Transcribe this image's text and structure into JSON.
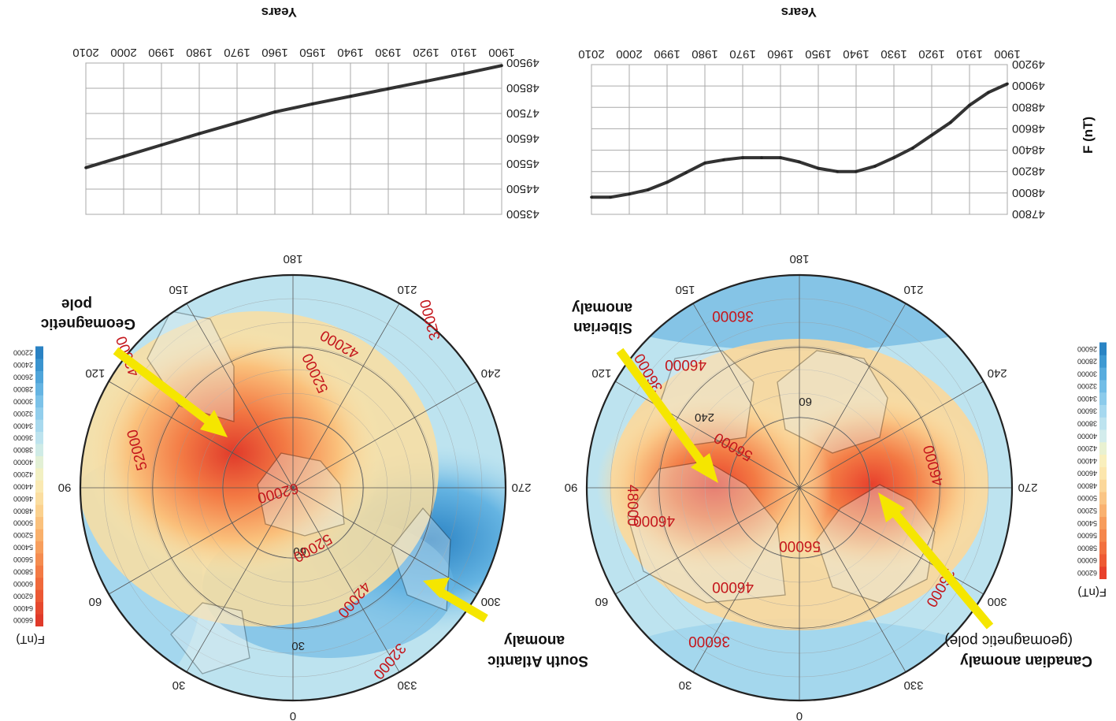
{
  "figure": {
    "orientation": "rotated 180 degrees",
    "panels": [
      {
        "id": "north",
        "colorbar": {
          "title": "F(nT)",
          "labels": [
            "62000",
            "60000",
            "58000",
            "56000",
            "54000",
            "52000",
            "50000",
            "48000",
            "46000",
            "44000",
            "42000",
            "40000",
            "38000",
            "36000",
            "34000",
            "32000",
            "30000",
            "28000",
            "26000"
          ],
          "colors": [
            "#e8402c",
            "#ee5a34",
            "#f2703f",
            "#f5864c",
            "#f79c5c",
            "#f9b170",
            "#fac585",
            "#fbd79a",
            "#fce6ad",
            "#f9efbd",
            "#e9f1d1",
            "#d3ecec",
            "#bde3ef",
            "#a6d8ef",
            "#8ccbeb",
            "#72bde6",
            "#58acde",
            "#3e99d2",
            "#2a84c4"
          ]
        },
        "map": {
          "azimuth_labels": [
            "0",
            "30",
            "60",
            "90",
            "120",
            "150",
            "180",
            "210",
            "240",
            "270",
            "300",
            "330"
          ],
          "lat_labels": [
            "60",
            "240"
          ],
          "contour_labels": [
            "36000",
            "46000",
            "56000",
            "46000",
            "56000",
            "36000",
            "46000",
            "36000",
            "48000",
            "46000",
            "36000"
          ],
          "annotations": [
            {
              "id": "canadian",
              "lines": [
                "Canadian anomaly",
                "(geomagnetic pole)"
              ]
            },
            {
              "id": "siberian",
              "lines": [
                "Siberian",
                "anomaly"
              ]
            }
          ]
        },
        "line_chart": {
          "ylabel": "F (nT)",
          "xlabel": "Years",
          "type": "line",
          "x": [
            1900,
            1905,
            1910,
            1915,
            1920,
            1925,
            1930,
            1935,
            1940,
            1945,
            1950,
            1955,
            1960,
            1965,
            1970,
            1975,
            1980,
            1985,
            1990,
            1995,
            2000,
            2005,
            2010
          ],
          "values": [
            49020,
            48940,
            48820,
            48660,
            48540,
            48420,
            48330,
            48250,
            48200,
            48200,
            48230,
            48290,
            48330,
            48330,
            48330,
            48310,
            48280,
            48190,
            48100,
            48030,
            47990,
            47960,
            47960
          ],
          "yticks": [
            49200,
            49000,
            48800,
            48600,
            48400,
            48200,
            48000,
            47800
          ],
          "xticks": [
            1900,
            1910,
            1920,
            1930,
            1940,
            1950,
            1960,
            1970,
            1980,
            1990,
            2000,
            2010
          ]
        }
      },
      {
        "id": "south",
        "colorbar": {
          "title": "F(nT)",
          "labels": [
            "66000",
            "64000",
            "62000",
            "60000",
            "58000",
            "56000",
            "54000",
            "52000",
            "50000",
            "48000",
            "46000",
            "44000",
            "42000",
            "40000",
            "38000",
            "36000",
            "34000",
            "32000",
            "30000",
            "28000",
            "26000",
            "24000",
            "22000"
          ],
          "colors": [
            "#e03a2a",
            "#e6482e",
            "#ec5834",
            "#f0693b",
            "#f37a44",
            "#f58c4f",
            "#f79e5c",
            "#f9b06b",
            "#fac17c",
            "#fbd18e",
            "#fbdea0",
            "#fae9b2",
            "#f2f0c2",
            "#e2f0d5",
            "#cfebe6",
            "#bde3ee",
            "#a8d9ee",
            "#92ceec",
            "#7cc2e8",
            "#65b4e2",
            "#4fa5da",
            "#3a94cf",
            "#2a82c3"
          ]
        },
        "map": {
          "azimuth_labels": [
            "0",
            "30",
            "60",
            "90",
            "120",
            "150",
            "180",
            "210",
            "240",
            "270",
            "300",
            "330"
          ],
          "lat_labels": [
            "60",
            "30"
          ],
          "contour_labels": [
            "32000",
            "42000",
            "52000",
            "62000",
            "52000",
            "42000",
            "32000",
            "52000",
            "42000"
          ],
          "annotations": [
            {
              "id": "south-atlantic",
              "lines": [
                "South Atlantic",
                "anomaly"
              ]
            },
            {
              "id": "geomagnetic",
              "lines": [
                "Geomagnetic",
                "pole"
              ]
            }
          ]
        },
        "line_chart": {
          "xlabel": "Years",
          "type": "line",
          "x": [
            1900,
            1910,
            1920,
            1930,
            1940,
            1950,
            1960,
            1970,
            1980,
            1990,
            2000,
            2010
          ],
          "values": [
            49400,
            49080,
            48780,
            48480,
            48180,
            47880,
            47560,
            47130,
            46700,
            46250,
            45800,
            45350
          ],
          "yticks": [
            49500,
            48500,
            47500,
            46500,
            45500,
            44500,
            43500
          ],
          "xticks": [
            1900,
            1910,
            1920,
            1930,
            1940,
            1950,
            1960,
            1970,
            1980,
            1990,
            2000,
            2010
          ]
        }
      }
    ]
  }
}
